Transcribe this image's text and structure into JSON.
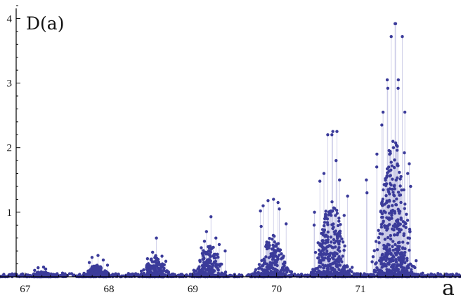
{
  "chart_data": {
    "type": "scatter",
    "title": "",
    "xlabel": "a",
    "ylabel": "D(a)",
    "xlim": [
      66.7,
      72.2
    ],
    "ylim": [
      0,
      4.2
    ],
    "x_ticks": [
      67,
      68,
      69,
      70,
      71
    ],
    "y_ticks": [
      1,
      2,
      3,
      4
    ],
    "grid": false,
    "stems": true,
    "marker_color": "#3b3b9a",
    "stem_color": "#c9c9e6",
    "axis_color": "#000000",
    "clusters": [
      {
        "center": 67.2,
        "peak_values": [
          0.15,
          0.14,
          0.12,
          0.1
        ]
      },
      {
        "center": 67.85,
        "peak_values": [
          0.33,
          0.3,
          0.26,
          0.22,
          0.18
        ]
      },
      {
        "center": 68.55,
        "peak_values": [
          0.6,
          0.38,
          0.32,
          0.28,
          0.24
        ]
      },
      {
        "center": 69.2,
        "peak_values": [
          0.93,
          0.7,
          0.6,
          0.55,
          0.5,
          0.45,
          0.4
        ]
      },
      {
        "center": 69.95,
        "peak_values": [
          1.2,
          1.18,
          1.15,
          1.1,
          1.05,
          1.02,
          0.82,
          0.78
        ]
      },
      {
        "center": 70.65,
        "peak_values": [
          2.25,
          2.2,
          1.8,
          1.6,
          1.5,
          1.48,
          1.25,
          1.0,
          0.95,
          0.8
        ]
      },
      {
        "center": 71.4,
        "peak_values": [
          3.92,
          3.72,
          3.05,
          2.92,
          2.55,
          2.35,
          1.92,
          1.9,
          1.75,
          1.7,
          1.6,
          1.5,
          1.4,
          1.3
        ]
      }
    ],
    "tallest_points": [
      {
        "x": 71.42,
        "y": 3.92
      },
      {
        "x": 71.5,
        "y": 3.72
      },
      {
        "x": 71.32,
        "y": 3.05
      },
      {
        "x": 71.45,
        "y": 2.92
      },
      {
        "x": 71.27,
        "y": 2.55
      },
      {
        "x": 70.72,
        "y": 2.25
      },
      {
        "x": 70.66,
        "y": 2.2
      }
    ]
  }
}
